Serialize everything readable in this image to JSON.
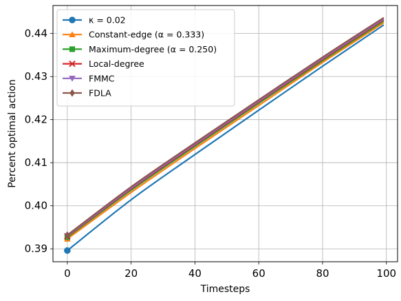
{
  "chart_data": {
    "type": "line",
    "title": "",
    "xlabel": "Timesteps",
    "ylabel": "Percent optimal action",
    "xlim": [
      -4.5,
      103.5
    ],
    "ylim": [
      0.387,
      0.4465
    ],
    "xticks": [
      0,
      20,
      40,
      60,
      80,
      100
    ],
    "yticks": [
      0.39,
      0.4,
      0.41,
      0.42,
      0.43,
      0.44
    ],
    "xtick_labels": [
      "0",
      "20",
      "40",
      "60",
      "80",
      "100"
    ],
    "ytick_labels": [
      "0.39",
      "0.40",
      "0.41",
      "0.42",
      "0.43",
      "0.44"
    ],
    "grid": true,
    "legend_position": "top-left",
    "series": [
      {
        "name": "κ = 0.02",
        "color": "#1f77b4",
        "marker": "circle",
        "x": [
          0,
          20,
          40,
          60,
          80,
          99
        ],
        "y": [
          0.3896,
          0.4014,
          0.4119,
          0.4222,
          0.4324,
          0.4419
        ]
      },
      {
        "name": "Constant-edge (α = 0.333)",
        "color": "#ff7f0e",
        "marker": "triangle-up",
        "x": [
          0,
          20,
          40,
          60,
          80,
          99
        ],
        "y": [
          0.3923,
          0.4031,
          0.4133,
          0.4233,
          0.4333,
          0.4424
        ]
      },
      {
        "name": "Maximum-degree (α = 0.250)",
        "color": "#2ca02c",
        "marker": "square",
        "x": [
          0,
          20,
          40,
          60,
          80,
          99
        ],
        "y": [
          0.3927,
          0.4036,
          0.4138,
          0.4238,
          0.4337,
          0.4428
        ]
      },
      {
        "name": "Local-degree",
        "color": "#d62728",
        "marker": "x",
        "x": [
          0,
          20,
          40,
          60,
          80,
          99
        ],
        "y": [
          0.3929,
          0.4039,
          0.4141,
          0.4241,
          0.434,
          0.4431
        ]
      },
      {
        "name": "FMMC",
        "color": "#9467bd",
        "marker": "triangle-down",
        "x": [
          0,
          20,
          40,
          60,
          80,
          99
        ],
        "y": [
          0.393,
          0.4041,
          0.4143,
          0.4243,
          0.4342,
          0.4433
        ]
      },
      {
        "name": "FDLA",
        "color": "#8c564b",
        "marker": "diamond",
        "x": [
          0,
          20,
          40,
          60,
          80,
          99
        ],
        "y": [
          0.3932,
          0.4044,
          0.4146,
          0.4246,
          0.4345,
          0.4436
        ]
      }
    ]
  }
}
